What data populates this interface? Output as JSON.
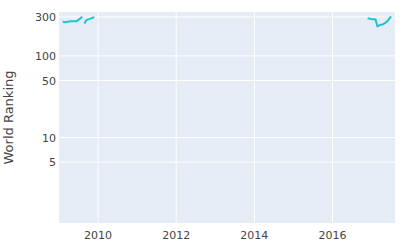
{
  "chart_data": {
    "type": "line",
    "ylabel": "World Ranking",
    "x": [
      2009.1,
      2009.15,
      2009.3,
      2009.45,
      2009.55,
      2009.6,
      null,
      2009.65,
      2009.7,
      2009.75,
      2009.85,
      2009.9,
      null,
      2016.9,
      2017.0,
      2017.1,
      2017.15,
      2017.2,
      2017.3,
      2017.4,
      2017.5
    ],
    "values": [
      265,
      258,
      265,
      265,
      290,
      300,
      null,
      250,
      274,
      280,
      290,
      300,
      null,
      290,
      282,
      282,
      230,
      237,
      244,
      265,
      305
    ],
    "color": "#1fc4cf",
    "xlim": [
      2009.0,
      2017.6
    ],
    "xticks": [
      2010,
      2012,
      2014,
      2016
    ],
    "ylim": [
      0.9,
      345
    ],
    "yticks": [
      5,
      10,
      50,
      100,
      300
    ],
    "log": "y",
    "grid": true
  }
}
